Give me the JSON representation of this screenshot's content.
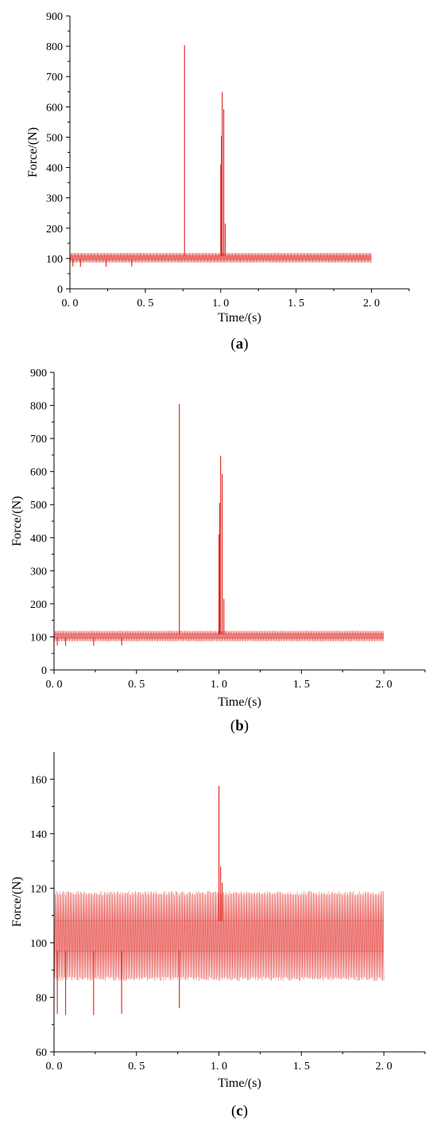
{
  "chart_data": [
    {
      "type": "line",
      "panel_label": {
        "open": "(",
        "letter": "a",
        "close": ")"
      },
      "xlabel": "Time/(s)",
      "ylabel": "Force/(N)",
      "xlim": [
        0,
        2.25
      ],
      "ylim": [
        0,
        900
      ],
      "x_ticks": [
        0.0,
        0.5,
        1.0,
        1.5,
        2.0
      ],
      "x_tick_labels": [
        "0. 0",
        "0. 5",
        "1. 0",
        "1. 5",
        "2. 0"
      ],
      "y_ticks": [
        0,
        100,
        200,
        300,
        400,
        500,
        600,
        700,
        800,
        900
      ],
      "y_tick_labels": [
        "0",
        "100",
        "200",
        "300",
        "400",
        "500",
        "600",
        "700",
        "800",
        "900"
      ],
      "grid": false,
      "series": [
        {
          "color": "#e0302c",
          "x_range": [
            0.0,
            2.0
          ],
          "oscillation": {
            "low": 86,
            "high": 119,
            "mid_low": 97,
            "mid_high": 108
          },
          "spikes": [
            {
              "x": 0.02,
              "y": 74
            },
            {
              "x": 0.07,
              "y": 73
            },
            {
              "x": 0.24,
              "y": 73
            },
            {
              "x": 0.41,
              "y": 74
            },
            {
              "x": 0.76,
              "y": 804
            },
            {
              "x": 1.0,
              "y": 410
            },
            {
              "x": 1.005,
              "y": 505
            },
            {
              "x": 1.01,
              "y": 648
            },
            {
              "x": 1.02,
              "y": 592
            },
            {
              "x": 1.03,
              "y": 215
            }
          ]
        }
      ]
    },
    {
      "type": "line",
      "panel_label": {
        "open": "(",
        "letter": "b",
        "close": ")"
      },
      "xlabel": "Time/(s)",
      "ylabel": "Force/(N)",
      "xlim": [
        0,
        2.25
      ],
      "ylim": [
        0,
        900
      ],
      "x_ticks": [
        0.0,
        0.5,
        1.0,
        1.5,
        2.0
      ],
      "x_tick_labels": [
        "0. 0",
        "0. 5",
        "1. 0",
        "1. 5",
        "2. 0"
      ],
      "y_ticks": [
        0,
        100,
        200,
        300,
        400,
        500,
        600,
        700,
        800,
        900
      ],
      "y_tick_labels": [
        "0",
        "100",
        "200",
        "300",
        "400",
        "500",
        "600",
        "700",
        "800",
        "900"
      ],
      "grid": false,
      "series": [
        {
          "color": "#e0302c",
          "x_range": [
            0.0,
            2.0
          ],
          "oscillation": {
            "low": 86,
            "high": 119,
            "mid_low": 97,
            "mid_high": 108
          },
          "spikes": [
            {
              "x": 0.02,
              "y": 74
            },
            {
              "x": 0.07,
              "y": 73
            },
            {
              "x": 0.24,
              "y": 73
            },
            {
              "x": 0.41,
              "y": 74
            },
            {
              "x": 0.76,
              "y": 804
            },
            {
              "x": 1.0,
              "y": 410
            },
            {
              "x": 1.005,
              "y": 505
            },
            {
              "x": 1.01,
              "y": 648
            },
            {
              "x": 1.02,
              "y": 592
            },
            {
              "x": 1.03,
              "y": 215
            }
          ]
        }
      ]
    },
    {
      "type": "line",
      "panel_label": {
        "open": "(",
        "letter": "c",
        "close": ")"
      },
      "xlabel": "Time/(s)",
      "ylabel": "Force/(N)",
      "xlim": [
        0,
        2.25
      ],
      "ylim": [
        60,
        170
      ],
      "x_ticks": [
        0.0,
        0.5,
        1.0,
        1.5,
        2.0
      ],
      "x_tick_labels": [
        "0. 0",
        "0. 5",
        "1. 0",
        "1. 5",
        "2. 0"
      ],
      "y_ticks": [
        60,
        80,
        100,
        120,
        140,
        160
      ],
      "y_tick_labels": [
        "60",
        "80",
        "100",
        "120",
        "140",
        "160"
      ],
      "grid": false,
      "series": [
        {
          "color": "#e0302c",
          "x_range": [
            0.0,
            2.0
          ],
          "oscillation": {
            "low": 86,
            "high": 119,
            "mid_low": 97,
            "mid_high": 108
          },
          "spikes": [
            {
              "x": 0.02,
              "y": 74
            },
            {
              "x": 0.07,
              "y": 73.5
            },
            {
              "x": 0.24,
              "y": 73.5
            },
            {
              "x": 0.41,
              "y": 74
            },
            {
              "x": 0.76,
              "y": 76
            },
            {
              "x": 1.0,
              "y": 157.5
            },
            {
              "x": 1.01,
              "y": 128
            },
            {
              "x": 1.02,
              "y": 122
            }
          ]
        }
      ]
    }
  ]
}
